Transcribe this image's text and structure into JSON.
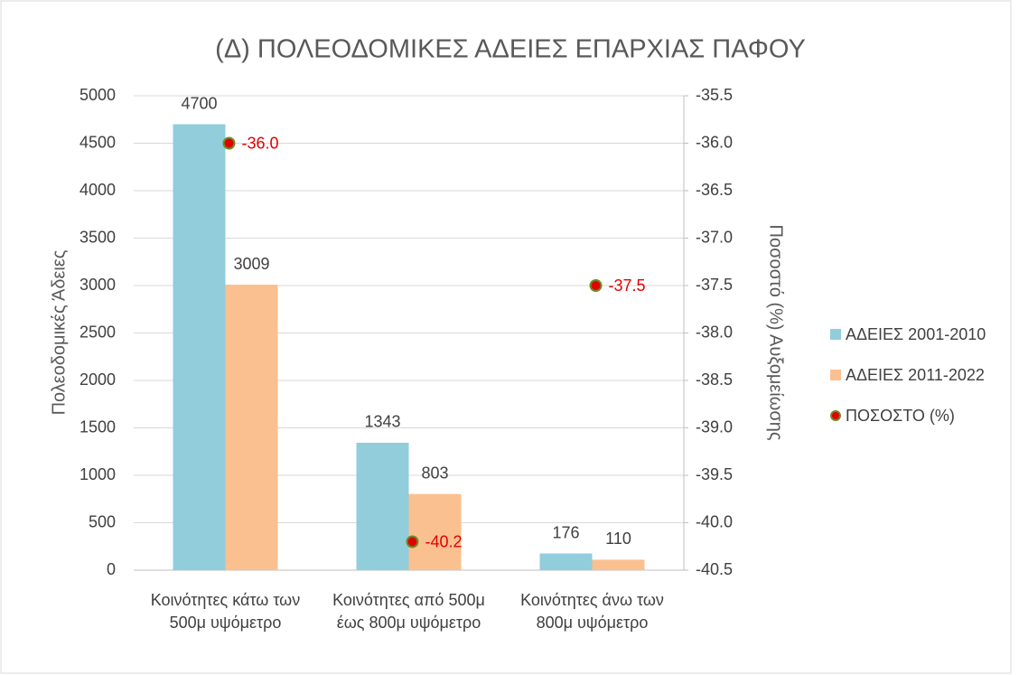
{
  "chart_data": {
    "type": "bar",
    "title": "(Δ) ΠΟΛΕΟΔΟΜΙΚΕΣ ΑΔΕΙΕΣ ΕΠΑΡΧΙΑΣ ΠΑΦΟΥ",
    "y_label": "Πολεοδομικές Άδειες",
    "y2_label": "Ποσοστό (%) Αυξομείωσης",
    "categories": [
      "Κοινότητες κάτω των 500μ υψόμετρο",
      "Κοινότητες από 500μ έως 800μ υψόμετρο",
      "Κοινότητες άνω των 800μ υψόμετρο"
    ],
    "series": [
      {
        "name": "ΑΔΕΙΕΣ 2001-2010",
        "color": "#92cddc",
        "values": [
          4700,
          1343,
          176
        ]
      },
      {
        "name": "ΑΔΕΙΕΣ 2011-2022",
        "color": "#fac090",
        "values": [
          3009,
          803,
          110
        ]
      },
      {
        "name": "ΠΟΣΟΣΤΟ (%)",
        "color": "#e30000",
        "type": "scatter",
        "axis": "y2",
        "values": [
          -36,
          -40.2,
          -37.5
        ],
        "value_labels": [
          "-36.0",
          "-40.2",
          "-37.5"
        ]
      }
    ],
    "ylim": [
      0,
      5000
    ],
    "yticks": [
      0,
      500,
      1000,
      1500,
      2000,
      2500,
      3000,
      3500,
      4000,
      4500,
      5000
    ],
    "y2lim": [
      -40.5,
      -35.5
    ],
    "y2ticks": [
      -40.5,
      {
        "value": -40,
        "label": "-40.0"
      },
      -39.5,
      {
        "value": -39,
        "label": "-39.0"
      },
      -38.5,
      {
        "value": -38,
        "label": "-38.0"
      },
      -37.5,
      {
        "value": -37,
        "label": "-37.0"
      },
      -36.5,
      {
        "value": -36,
        "label": "-36.0"
      },
      -35.5
    ],
    "grid": true,
    "legend": "right"
  }
}
